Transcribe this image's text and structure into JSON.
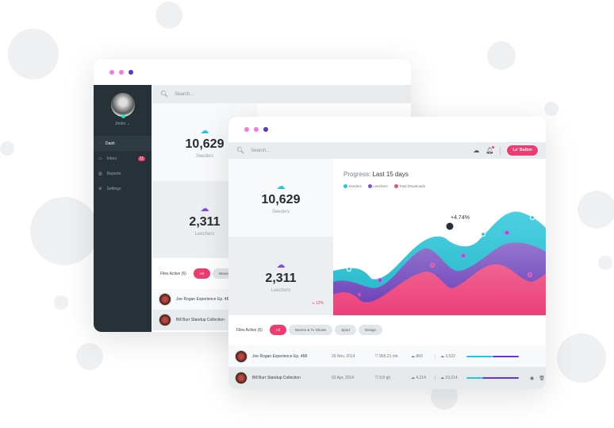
{
  "colors": {
    "accent": "#ec3c70",
    "seeders": "#26c6da",
    "leechers": "#7c4ddb",
    "downloads": "#ef4b7e",
    "sidebar": "#263238"
  },
  "back": {
    "user": "Jimbo ⌄",
    "search_placeholder": "Search...",
    "nav": [
      {
        "label": "Dash",
        "icon": "gauge-icon"
      },
      {
        "label": "Inbox",
        "icon": "inbox-icon",
        "badge": "11"
      },
      {
        "label": "Reports",
        "icon": "chart-icon"
      },
      {
        "label": "Settings",
        "icon": "gear-icon"
      }
    ],
    "seeders": {
      "value": "10,629",
      "label": "Seeders"
    },
    "leechers": {
      "value": "2,311",
      "label": "Leechers"
    },
    "files_title": "Files Active (6)",
    "filters": [
      "All",
      "Movies"
    ],
    "rows": [
      "Joe Rogan Experience Ep. 468",
      "Bill Burr Standup Collection"
    ]
  },
  "front": {
    "search_placeholder": "Search...",
    "button": "Le' Button",
    "seeders": {
      "value": "10,629",
      "label": "Seeders"
    },
    "leechers": {
      "value": "2,311",
      "label": "Leechers",
      "change": "↘ 12%"
    },
    "chart": {
      "title_prefix": "Progress:",
      "title": "Last 15 days",
      "legend": [
        "Seeders",
        "Leechers",
        "Total Downloads"
      ],
      "annotation": "+4.74%"
    },
    "files_title": "Files Active (6)",
    "filters": [
      "All",
      "Movies & Tv Shows",
      "Sport",
      "Design"
    ],
    "rows": [
      {
        "name": "Joe Rogan Experience Ep. 468",
        "date": "26 Nov, 2014",
        "size": "965.21 mb",
        "up": "860",
        "down": "3,522",
        "progress": 0.5
      },
      {
        "name": "Bill Burr Standup Collection",
        "date": "02 Apr, 2014",
        "size": "9.8 gb",
        "up": "4,214",
        "down": "19,214",
        "progress": 0.3
      }
    ]
  }
}
